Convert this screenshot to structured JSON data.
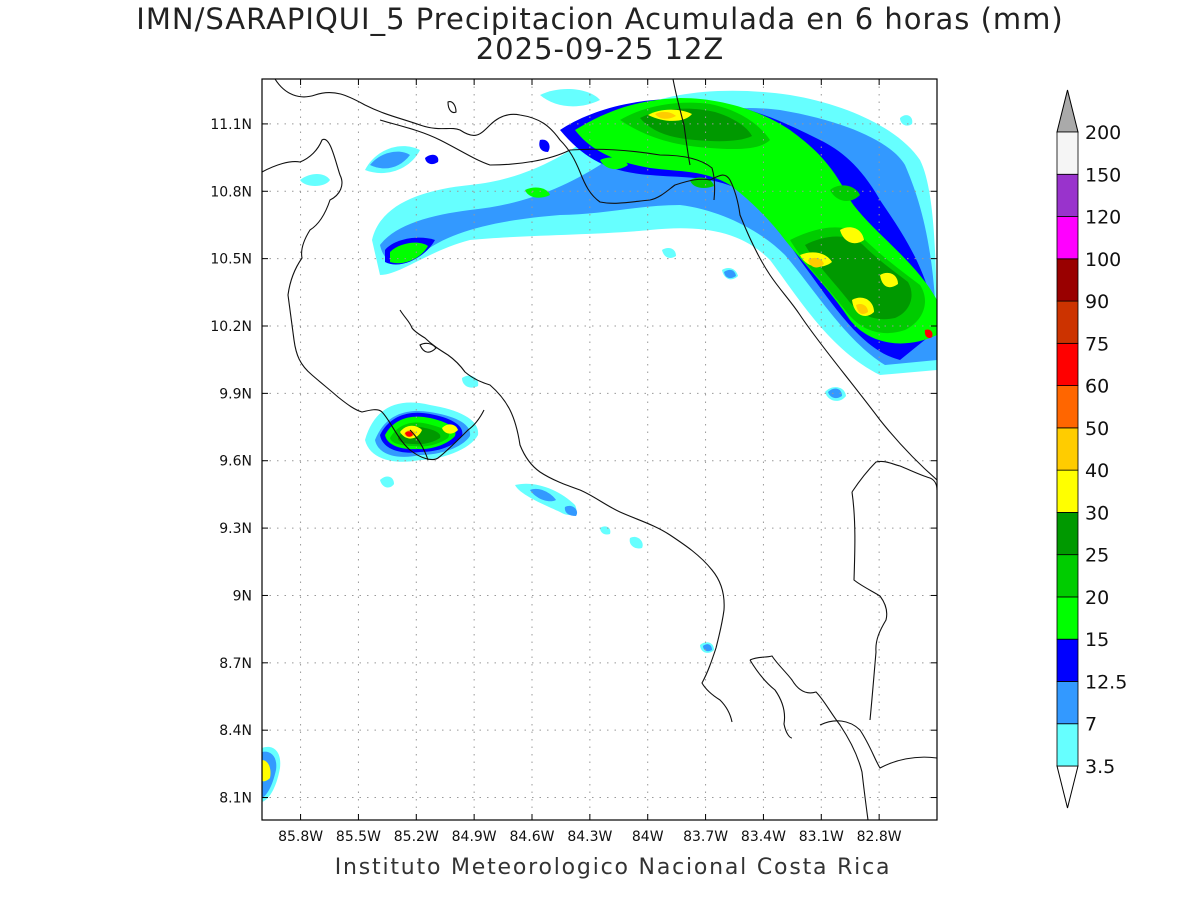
{
  "title_line1": "IMN/SARAPIQUI_5 Precipitacion Acumulada en 6 horas (mm)",
  "title_line2": "2025-09-25 12Z",
  "credit": "Instituto Meteorologico Nacional Costa Rica",
  "map": {
    "lon_range": [
      -86.0,
      -82.5
    ],
    "lat_range": [
      8.0,
      11.3
    ],
    "lon_ticks": [
      {
        "v": -85.8,
        "label": "85.8W"
      },
      {
        "v": -85.5,
        "label": "85.5W"
      },
      {
        "v": -85.2,
        "label": "85.2W"
      },
      {
        "v": -84.9,
        "label": "84.9W"
      },
      {
        "v": -84.6,
        "label": "84.6W"
      },
      {
        "v": -84.3,
        "label": "84.3W"
      },
      {
        "v": -84.0,
        "label": "84W"
      },
      {
        "v": -83.7,
        "label": "83.7W"
      },
      {
        "v": -83.4,
        "label": "83.4W"
      },
      {
        "v": -83.1,
        "label": "83.1W"
      },
      {
        "v": -82.8,
        "label": "82.8W"
      }
    ],
    "lat_ticks": [
      {
        "v": 8.1,
        "label": "8.1N"
      },
      {
        "v": 8.4,
        "label": "8.4N"
      },
      {
        "v": 8.7,
        "label": "8.7N"
      },
      {
        "v": 9.0,
        "label": "9N"
      },
      {
        "v": 9.3,
        "label": "9.3N"
      },
      {
        "v": 9.6,
        "label": "9.6N"
      },
      {
        "v": 9.9,
        "label": "9.9N"
      },
      {
        "v": 10.2,
        "label": "10.2N"
      },
      {
        "v": 10.5,
        "label": "10.5N"
      },
      {
        "v": 10.8,
        "label": "10.8N"
      },
      {
        "v": 11.1,
        "label": "11.1N"
      }
    ]
  },
  "colorbar": {
    "levels": [
      {
        "label": "3.5",
        "color": "#66ffff"
      },
      {
        "label": "7",
        "color": "#3399ff"
      },
      {
        "label": "12.5",
        "color": "#0000ff"
      },
      {
        "label": "15",
        "color": "#00ff00"
      },
      {
        "label": "20",
        "color": "#00cc00"
      },
      {
        "label": "25",
        "color": "#009900"
      },
      {
        "label": "30",
        "color": "#ffff00"
      },
      {
        "label": "40",
        "color": "#ffcc00"
      },
      {
        "label": "50",
        "color": "#ff6600"
      },
      {
        "label": "60",
        "color": "#ff0000"
      },
      {
        "label": "75",
        "color": "#cc3300"
      },
      {
        "label": "90",
        "color": "#990000"
      },
      {
        "label": "100",
        "color": "#ff00ff"
      },
      {
        "label": "120",
        "color": "#9933cc"
      },
      {
        "label": "150",
        "color": "#f5f5f5"
      },
      {
        "label": "200",
        "color": "#aaaaaa"
      }
    ],
    "under_color": "#ffffff",
    "over_color": "#aaaaaa"
  }
}
